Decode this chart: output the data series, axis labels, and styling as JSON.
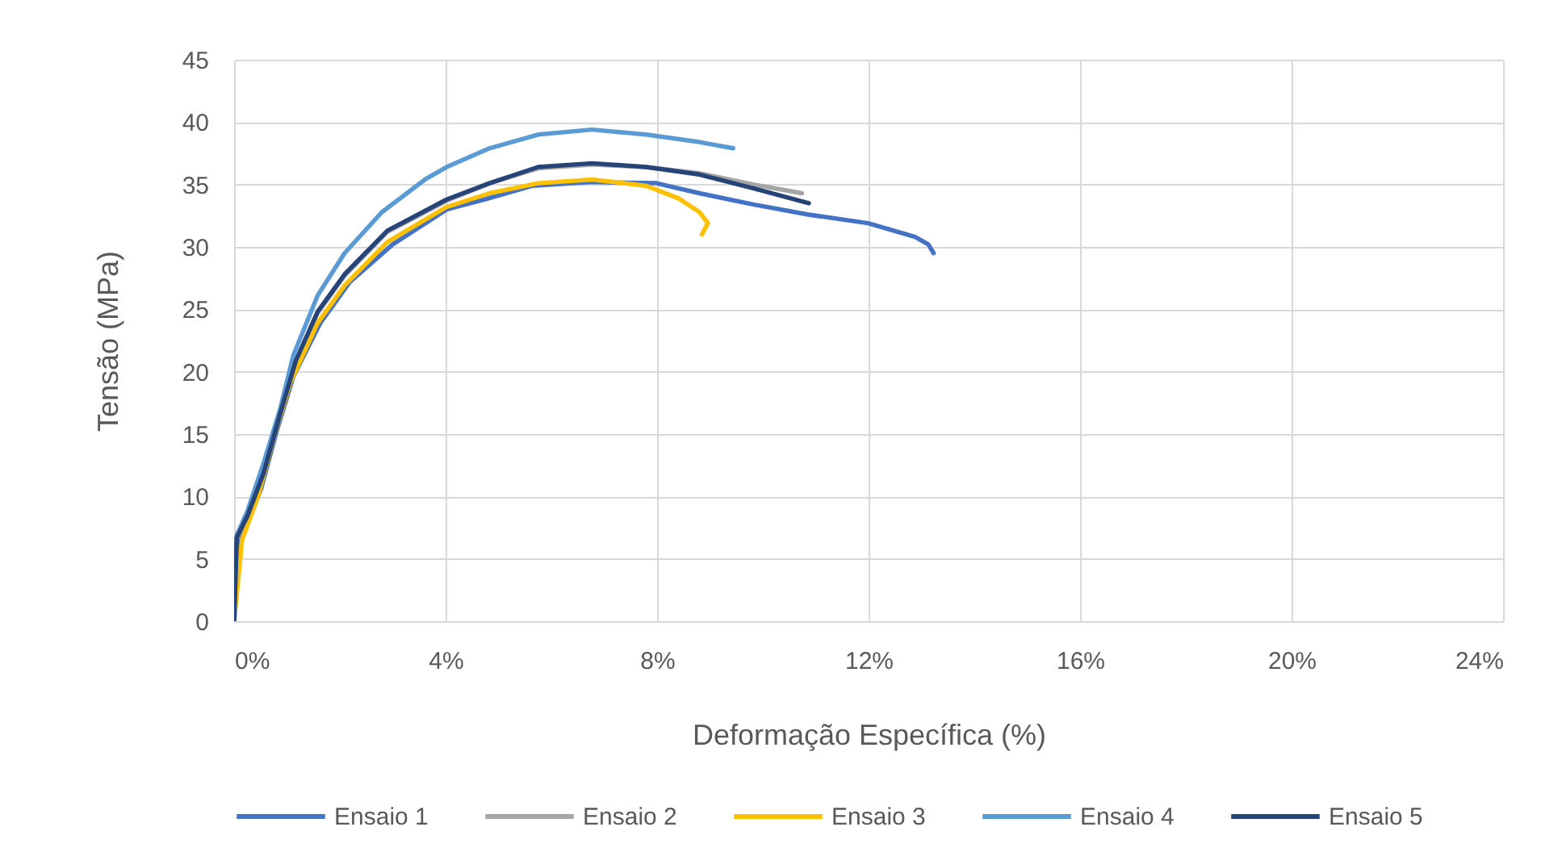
{
  "chart_data": {
    "type": "line",
    "xlabel": "Deformação Específica (%)",
    "ylabel": "Tensão (MPa)",
    "xlim": [
      0,
      24
    ],
    "xticks": [
      {
        "value": 0,
        "label": "0%"
      },
      {
        "value": 4,
        "label": "4%"
      },
      {
        "value": 8,
        "label": "8%"
      },
      {
        "value": 12,
        "label": "12%"
      },
      {
        "value": 16,
        "label": "16%"
      },
      {
        "value": 20,
        "label": "20%"
      },
      {
        "value": 24,
        "label": "24%"
      }
    ],
    "ylim": [
      0,
      45
    ],
    "yticks": [
      0,
      5,
      10,
      15,
      20,
      25,
      30,
      35,
      40,
      45
    ],
    "grid": true,
    "legend": "bottom",
    "marker": "none",
    "line_style": "solid",
    "series": [
      {
        "name": "Ensaio 1",
        "color": "#4472c4",
        "x": [
          0,
          0.1,
          0.51,
          0.81,
          1.12,
          1.63,
          2.19,
          3.0,
          4.02,
          4.73,
          5.65,
          6.77,
          7.99,
          8.8,
          9.82,
          10.84,
          11.99,
          12.88,
          13.13,
          13.23
        ],
        "values": [
          0,
          6.2,
          10.6,
          15.3,
          19.6,
          23.9,
          27.2,
          30.2,
          33.0,
          33.8,
          34.9,
          35.2,
          35.1,
          34.3,
          33.4,
          32.6,
          31.9,
          30.8,
          30.2,
          29.5
        ]
      },
      {
        "name": "Ensaio 2",
        "color": "#a5a5a5",
        "x": [
          0,
          0.05,
          0.25,
          0.56,
          0.87,
          1.17,
          1.58,
          2.09,
          2.9,
          4.02,
          4.83,
          5.75,
          6.77,
          7.79,
          8.8,
          9.82,
          10.74
        ],
        "values": [
          0,
          6.6,
          8.3,
          11.8,
          16.5,
          20.8,
          24.7,
          27.7,
          31.2,
          33.7,
          35.1,
          36.3,
          36.6,
          36.4,
          35.9,
          35.0,
          34.3
        ]
      },
      {
        "name": "Ensaio 3",
        "color": "#ffc000",
        "x": [
          0,
          0.15,
          0.46,
          0.76,
          1.07,
          1.58,
          2.09,
          2.9,
          4.02,
          4.83,
          5.75,
          6.77,
          7.79,
          8.4,
          8.8,
          8.96,
          8.85
        ],
        "values": [
          0,
          6.5,
          10.1,
          14.9,
          19.2,
          23.9,
          26.9,
          30.4,
          33.2,
          34.3,
          35.1,
          35.4,
          34.9,
          33.9,
          32.8,
          31.9,
          31.0
        ]
      },
      {
        "name": "Ensaio 4",
        "color": "#5b9bd5",
        "x": [
          0,
          0.05,
          0.25,
          0.56,
          0.87,
          1.12,
          1.58,
          2.09,
          2.8,
          3.61,
          4.02,
          4.83,
          5.75,
          6.77,
          7.79,
          8.8,
          9.44
        ],
        "values": [
          0,
          6.9,
          8.8,
          12.7,
          17.0,
          21.3,
          26.1,
          29.5,
          32.8,
          35.4,
          36.4,
          37.9,
          39.0,
          39.4,
          39.0,
          38.4,
          37.9
        ]
      },
      {
        "name": "Ensaio 5",
        "color": "#264478",
        "x": [
          0,
          0.05,
          0.25,
          0.56,
          0.87,
          1.17,
          1.58,
          2.09,
          2.9,
          4.02,
          4.83,
          5.75,
          6.77,
          7.79,
          8.8,
          9.82,
          10.87
        ],
        "values": [
          0,
          6.7,
          8.4,
          11.9,
          16.6,
          20.9,
          24.8,
          27.8,
          31.3,
          33.8,
          35.1,
          36.4,
          36.7,
          36.4,
          35.8,
          34.7,
          33.5
        ]
      }
    ]
  }
}
